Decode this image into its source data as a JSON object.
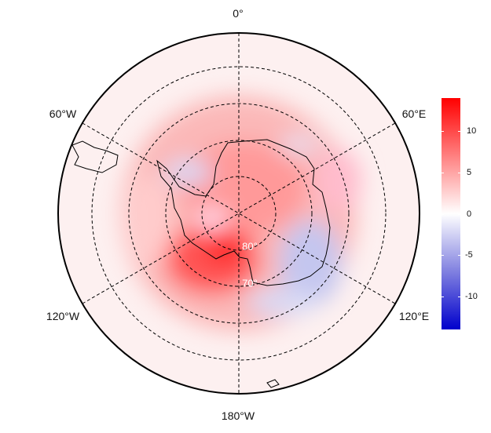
{
  "map": {
    "projection": "south-polar-stereographic",
    "longitude_labels": [
      "0°",
      "60°E",
      "120°E",
      "180°W",
      "120°W",
      "60°W"
    ],
    "latitude_labels": [
      "80°",
      "70°"
    ]
  },
  "colorbar": {
    "range": [
      -14,
      14
    ],
    "ticks": [
      "10",
      "5",
      "0",
      "-5",
      "-10"
    ],
    "tick_values": [
      10,
      5,
      0,
      -5,
      -10
    ],
    "colors": {
      "max": "#ff0000",
      "mid": "#ffffff",
      "min": "#0000cc"
    }
  }
}
